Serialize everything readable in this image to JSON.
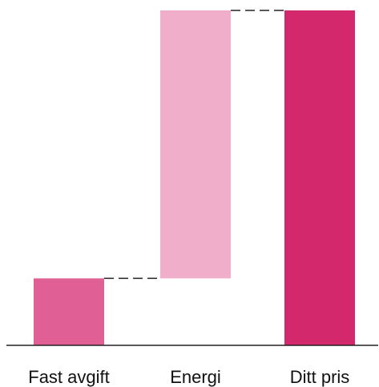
{
  "chart_data": {
    "type": "waterfall",
    "title": "",
    "xlabel": "",
    "ylabel": "",
    "categories": [
      "Fast avgift",
      "Energi",
      "Ditt pris"
    ],
    "values": [
      20,
      80,
      100
    ],
    "bars": [
      {
        "label": "Fast avgift",
        "start": 0,
        "end": 20,
        "color": "#e06096"
      },
      {
        "label": "Energi",
        "start": 20,
        "end": 100,
        "color": "#f0aecb"
      },
      {
        "label": "Ditt pris",
        "start": 0,
        "end": 100,
        "color": "#d4286c"
      }
    ],
    "connectors": true,
    "y_axis_visible": false,
    "ylim": [
      0,
      100
    ],
    "grid": false,
    "legend": "none"
  }
}
